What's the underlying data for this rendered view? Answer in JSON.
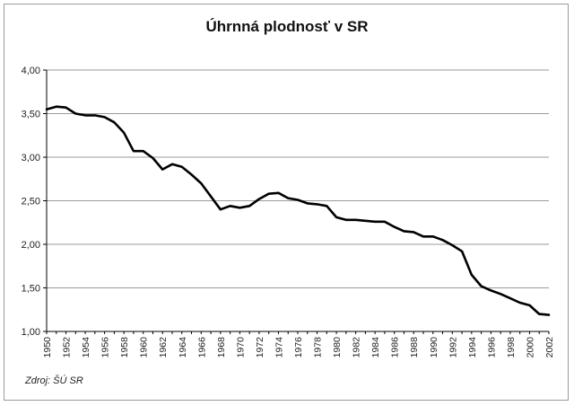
{
  "chart_data": {
    "type": "line",
    "title": "Úhrnná plodnosť v SR",
    "xlabel": "",
    "ylabel": "",
    "source": "Zdroj: ŠÚ SR",
    "ylim": [
      1.0,
      4.0
    ],
    "xlim": [
      1950,
      2002
    ],
    "grid": true,
    "legend": "none",
    "y_ticks": [
      "1,00",
      "1,50",
      "2,00",
      "2,50",
      "3,00",
      "3,50",
      "4,00"
    ],
    "x_ticks": [
      "1950",
      "1952",
      "1954",
      "1956",
      "1958",
      "1960",
      "1962",
      "1964",
      "1966",
      "1968",
      "1970",
      "1972",
      "1974",
      "1976",
      "1978",
      "1980",
      "1982",
      "1984",
      "1986",
      "1988",
      "1990",
      "1992",
      "1994",
      "1996",
      "1998",
      "2000",
      "2002"
    ],
    "x": [
      1950,
      1951,
      1952,
      1953,
      1954,
      1955,
      1956,
      1957,
      1958,
      1959,
      1960,
      1961,
      1962,
      1963,
      1964,
      1965,
      1966,
      1967,
      1968,
      1969,
      1970,
      1971,
      1972,
      1973,
      1974,
      1975,
      1976,
      1977,
      1978,
      1979,
      1980,
      1981,
      1982,
      1983,
      1984,
      1985,
      1986,
      1987,
      1988,
      1989,
      1990,
      1991,
      1992,
      1993,
      1994,
      1995,
      1996,
      1997,
      1998,
      1999,
      2000,
      2001,
      2002
    ],
    "series": [
      {
        "values": [
          3.55,
          3.58,
          3.57,
          3.5,
          3.48,
          3.48,
          3.46,
          3.4,
          3.28,
          3.07,
          3.07,
          2.99,
          2.86,
          2.92,
          2.89,
          2.8,
          2.7,
          2.55,
          2.4,
          2.44,
          2.42,
          2.44,
          2.52,
          2.58,
          2.59,
          2.53,
          2.51,
          2.47,
          2.46,
          2.44,
          2.31,
          2.28,
          2.28,
          2.27,
          2.26,
          2.26,
          2.2,
          2.15,
          2.14,
          2.09,
          2.09,
          2.05,
          1.99,
          1.92,
          1.65,
          1.52,
          1.47,
          1.43,
          1.38,
          1.33,
          1.3,
          1.2,
          1.19
        ],
        "color": "#000000"
      }
    ]
  }
}
